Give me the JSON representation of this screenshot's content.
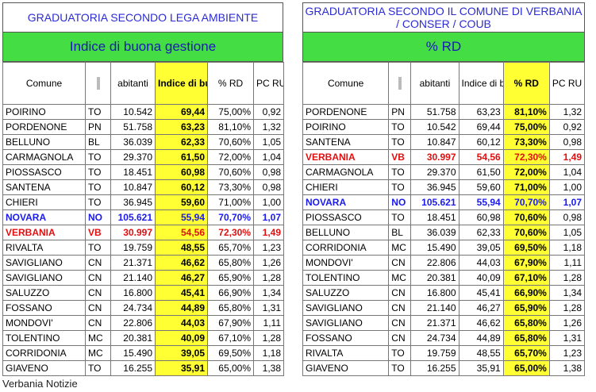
{
  "left": {
    "title": "GRADUATORIA SECONDO LEGA AMBIENTE",
    "subtitle": "Indice di buona gestione",
    "headers": {
      "comune": "Comune",
      "abitanti": "abitanti",
      "indice": "Indice di buona gestione",
      "rd": "% RD",
      "pc": "PC RU"
    },
    "rows": [
      {
        "comune": "POIRINO",
        "prov": "TO",
        "abitanti": "10.542",
        "indice": "69,44",
        "rd": "75,00%",
        "pc": "0,92"
      },
      {
        "comune": "PORDENONE",
        "prov": "PN",
        "abitanti": "51.758",
        "indice": "63,23",
        "rd": "81,10%",
        "pc": "1,32"
      },
      {
        "comune": "BELLUNO",
        "prov": "BL",
        "abitanti": "36.039",
        "indice": "62,33",
        "rd": "70,60%",
        "pc": "1,05"
      },
      {
        "comune": "CARMAGNOLA",
        "prov": "TO",
        "abitanti": "29.370",
        "indice": "61,50",
        "rd": "72,00%",
        "pc": "1,04"
      },
      {
        "comune": "PIOSSASCO",
        "prov": "TO",
        "abitanti": "18.451",
        "indice": "60,98",
        "rd": "70,60%",
        "pc": "0,98"
      },
      {
        "comune": "SANTENA",
        "prov": "TO",
        "abitanti": "10.847",
        "indice": "60,12",
        "rd": "73,30%",
        "pc": "0,98"
      },
      {
        "comune": "CHIERI",
        "prov": "TO",
        "abitanti": "36.945",
        "indice": "59,60",
        "rd": "71,00%",
        "pc": "1,00"
      },
      {
        "comune": "NOVARA",
        "prov": "NO",
        "abitanti": "105.621",
        "indice": "55,94",
        "rd": "70,70%",
        "pc": "1,07",
        "style": "novara"
      },
      {
        "comune": "VERBANIA",
        "prov": "VB",
        "abitanti": "30.997",
        "indice": "54,56",
        "rd": "72,30%",
        "pc": "1,49",
        "style": "verbania"
      },
      {
        "comune": "RIVALTA",
        "prov": "TO",
        "abitanti": "19.759",
        "indice": "48,55",
        "rd": "65,70%",
        "pc": "1,23"
      },
      {
        "comune": "SAVIGLIANO",
        "prov": "CN",
        "abitanti": "21.371",
        "indice": "46,62",
        "rd": "65,80%",
        "pc": "1,26"
      },
      {
        "comune": "SAVIGLIANO",
        "prov": "CN",
        "abitanti": "21.140",
        "indice": "46,27",
        "rd": "65,90%",
        "pc": "1,28"
      },
      {
        "comune": "SALUZZO",
        "prov": "CN",
        "abitanti": "16.800",
        "indice": "45,41",
        "rd": "66,90%",
        "pc": "1,34"
      },
      {
        "comune": "FOSSANO",
        "prov": "CN",
        "abitanti": "24.734",
        "indice": "44,89",
        "rd": "65,80%",
        "pc": "1,31"
      },
      {
        "comune": "MONDOVI'",
        "prov": "CN",
        "abitanti": "22.806",
        "indice": "44,03",
        "rd": "67,90%",
        "pc": "1,11"
      },
      {
        "comune": "TOLENTINO",
        "prov": "MC",
        "abitanti": "20.381",
        "indice": "40,09",
        "rd": "67,10%",
        "pc": "1,28"
      },
      {
        "comune": "CORRIDONIA",
        "prov": "MC",
        "abitanti": "15.490",
        "indice": "39,05",
        "rd": "69,50%",
        "pc": "1,18"
      },
      {
        "comune": "GIAVENO",
        "prov": "TO",
        "abitanti": "16.255",
        "indice": "35,91",
        "rd": "65,00%",
        "pc": "1,38"
      }
    ]
  },
  "right": {
    "title": "GRADUATORIA SECONDO IL COMUNE DI VERBANIA / CONSER / COUB",
    "subtitle": "% RD",
    "headers": {
      "comune": "Comune",
      "abitanti": "abitanti",
      "indice": "Indice di buona gestione",
      "rd": "% RD",
      "pc": "PC RU"
    },
    "rows": [
      {
        "comune": "PORDENONE",
        "prov": "PN",
        "abitanti": "51.758",
        "indice": "63,23",
        "rd": "81,10%",
        "pc": "1,32"
      },
      {
        "comune": "POIRINO",
        "prov": "TO",
        "abitanti": "10.542",
        "indice": "69,44",
        "rd": "75,00%",
        "pc": "0,92"
      },
      {
        "comune": "SANTENA",
        "prov": "TO",
        "abitanti": "10.847",
        "indice": "60,12",
        "rd": "73,30%",
        "pc": "0,98"
      },
      {
        "comune": "VERBANIA",
        "prov": "VB",
        "abitanti": "30.997",
        "indice": "54,56",
        "rd": "72,30%",
        "pc": "1,49",
        "style": "verbania"
      },
      {
        "comune": "CARMAGNOLA",
        "prov": "TO",
        "abitanti": "29.370",
        "indice": "61,50",
        "rd": "72,00%",
        "pc": "1,04"
      },
      {
        "comune": "CHIERI",
        "prov": "TO",
        "abitanti": "36.945",
        "indice": "59,60",
        "rd": "71,00%",
        "pc": "1,00"
      },
      {
        "comune": "NOVARA",
        "prov": "NO",
        "abitanti": "105.621",
        "indice": "55,94",
        "rd": "70,70%",
        "pc": "1,07",
        "style": "novara"
      },
      {
        "comune": "PIOSSASCO",
        "prov": "TO",
        "abitanti": "18.451",
        "indice": "60,98",
        "rd": "70,60%",
        "pc": "0,98"
      },
      {
        "comune": "BELLUNO",
        "prov": "BL",
        "abitanti": "36.039",
        "indice": "62,33",
        "rd": "70,60%",
        "pc": "1,05"
      },
      {
        "comune": "CORRIDONIA",
        "prov": "MC",
        "abitanti": "15.490",
        "indice": "39,05",
        "rd": "69,50%",
        "pc": "1,18"
      },
      {
        "comune": "MONDOVI'",
        "prov": "CN",
        "abitanti": "22.806",
        "indice": "44,03",
        "rd": "67,90%",
        "pc": "1,11"
      },
      {
        "comune": "TOLENTINO",
        "prov": "MC",
        "abitanti": "20.381",
        "indice": "40,09",
        "rd": "67,10%",
        "pc": "1,28"
      },
      {
        "comune": "SALUZZO",
        "prov": "CN",
        "abitanti": "16.800",
        "indice": "45,41",
        "rd": "66,90%",
        "pc": "1,34"
      },
      {
        "comune": "SAVIGLIANO",
        "prov": "CN",
        "abitanti": "21.140",
        "indice": "46,27",
        "rd": "65,90%",
        "pc": "1,28"
      },
      {
        "comune": "SAVIGLIANO",
        "prov": "CN",
        "abitanti": "21.371",
        "indice": "46,62",
        "rd": "65,80%",
        "pc": "1,26"
      },
      {
        "comune": "FOSSANO",
        "prov": "CN",
        "abitanti": "24.734",
        "indice": "44,89",
        "rd": "65,80%",
        "pc": "1,31"
      },
      {
        "comune": "RIVALTA",
        "prov": "TO",
        "abitanti": "19.759",
        "indice": "48,55",
        "rd": "65,70%",
        "pc": "1,23"
      },
      {
        "comune": "GIAVENO",
        "prov": "TO",
        "abitanti": "16.255",
        "indice": "35,91",
        "rd": "65,00%",
        "pc": "1,38"
      }
    ]
  },
  "footer": "Verbania Notizie",
  "colors": {
    "highlight": "#ffff33",
    "green": "#44dd44",
    "title_blue": "#2b2bd6",
    "novara": "#1a1aee",
    "verbania": "#e01010"
  }
}
